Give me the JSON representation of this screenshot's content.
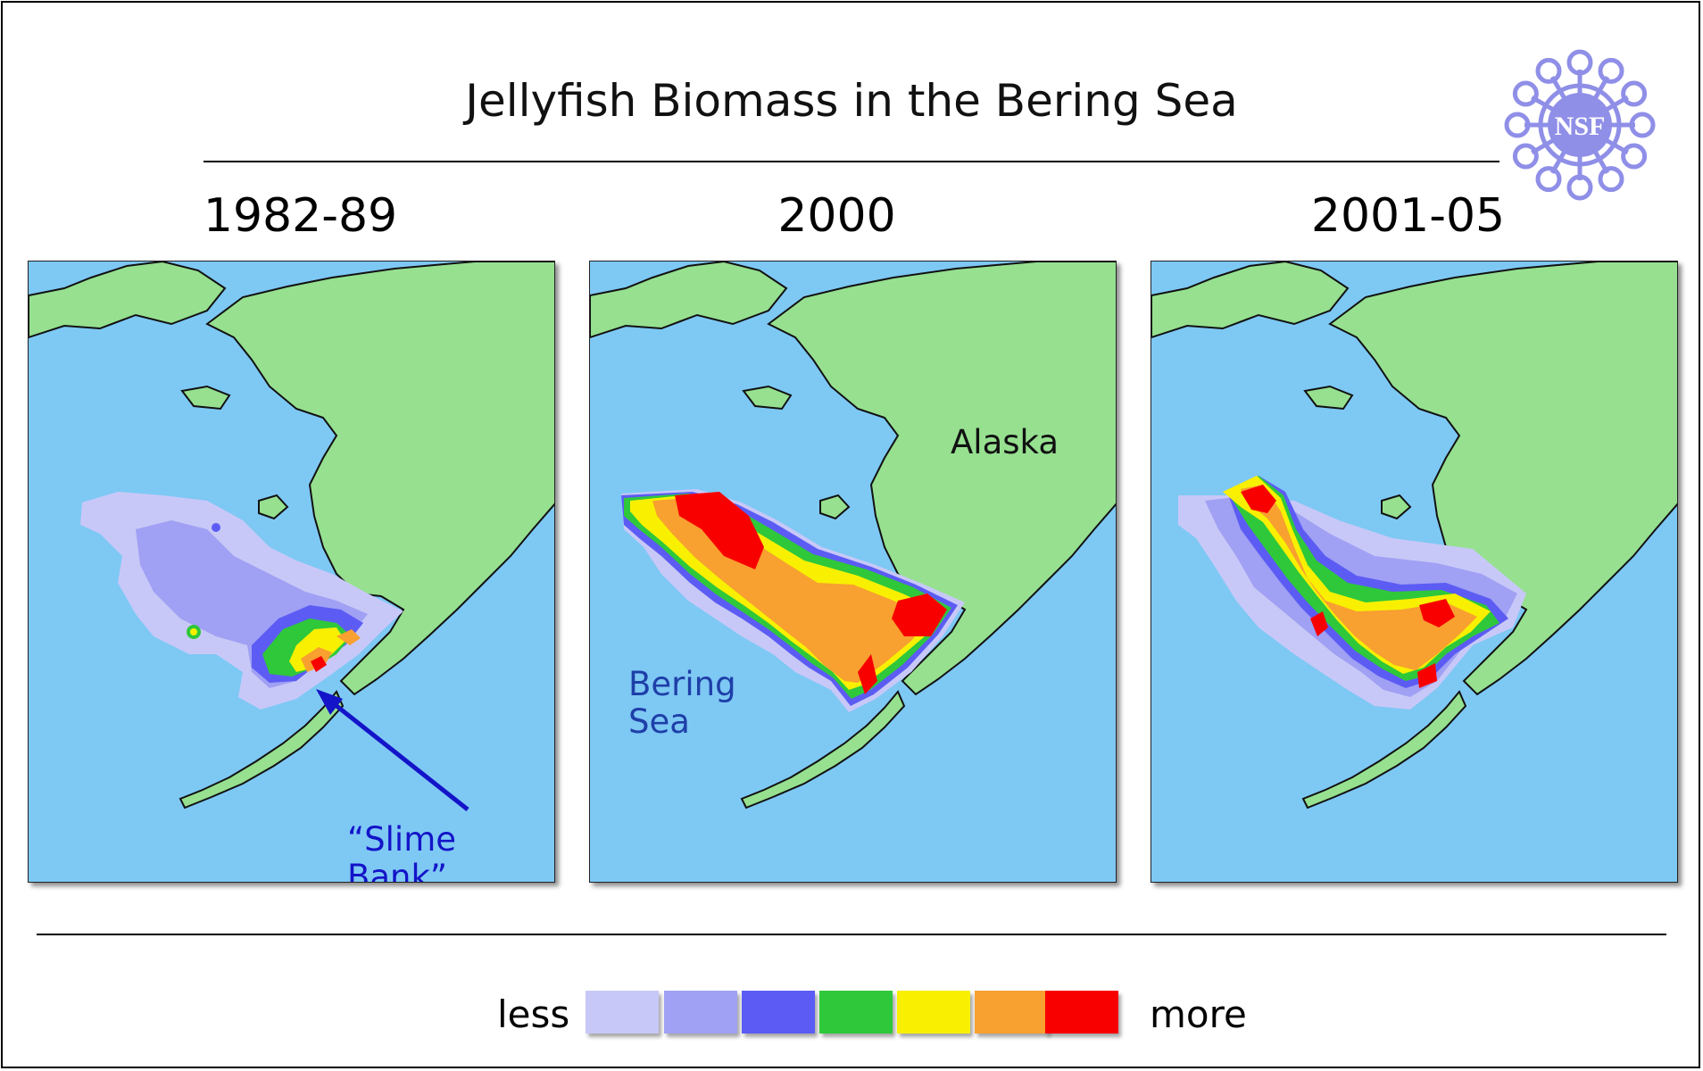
{
  "title": "Jellyfish Biomass in the Bering Sea",
  "logo": {
    "text": "NSF",
    "color": "#8f8fe8"
  },
  "panels": [
    {
      "period": "1982-89",
      "annotation": "“Slime Bank”",
      "annotation_color": "#1414c8"
    },
    {
      "period": "2000",
      "labels": {
        "alaska": "Alaska",
        "bering_line1": "Bering",
        "bering_line2": "Sea"
      },
      "bering_color": "#1e3fa8"
    },
    {
      "period": "2001-05"
    }
  ],
  "legend": {
    "less": "less",
    "more": "more",
    "colors": [
      "#c8c8f8",
      "#a0a0f4",
      "#5c5cf4",
      "#2ec83a",
      "#f8f000",
      "#f8a030",
      "#f80000"
    ]
  },
  "colors": {
    "ocean": "#7ec8f4",
    "land": "#96e090"
  }
}
